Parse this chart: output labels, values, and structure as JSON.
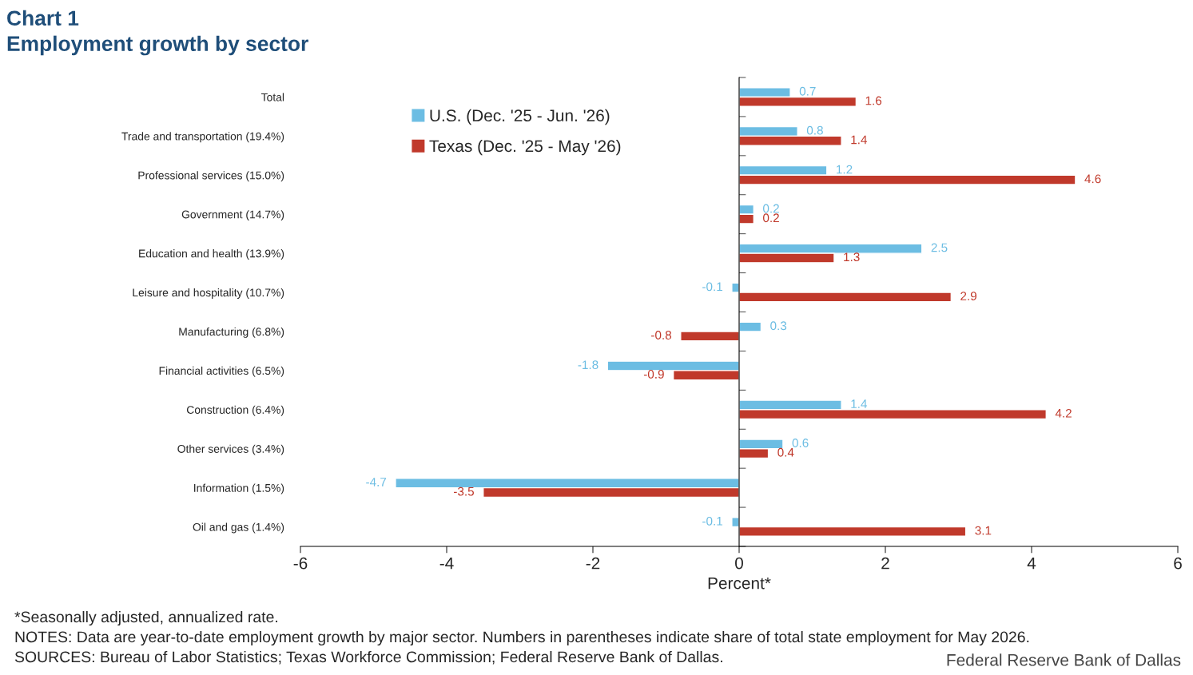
{
  "chart_data": {
    "type": "bar",
    "orientation": "horizontal",
    "title": "Chart 1",
    "subtitle": "Employment growth by sector",
    "xlabel": "Percent*",
    "categories": [
      "Total",
      "Trade and transportation (19.4%)",
      "Professional services (15.0%)",
      "Government (14.7%)",
      "Education and health (13.9%)",
      "Leisure and hospitality (10.7%)",
      "Manufacturing (6.8%)",
      "Financial activities (6.5%)",
      "Construction (6.4%)",
      "Other services (3.4%)",
      "Information (1.5%)",
      "Oil and gas (1.4%)"
    ],
    "series": [
      {
        "name": "U.S. (Dec. '25 - Jun. '26)",
        "color": "#6cbde3",
        "values": [
          0.7,
          0.8,
          1.2,
          0.2,
          2.5,
          -0.1,
          0.3,
          -1.8,
          1.4,
          0.6,
          -4.7,
          -0.1
        ]
      },
      {
        "name": "Texas (Dec. '25 - May '26)",
        "color": "#c0392b",
        "values": [
          1.6,
          1.4,
          4.6,
          0.2,
          1.3,
          2.9,
          -0.8,
          -0.9,
          4.2,
          0.4,
          -3.5,
          3.1
        ]
      }
    ],
    "data_labels": true,
    "xlim": [
      -6,
      6
    ],
    "xticks": [
      -6,
      -4,
      -2,
      0,
      2,
      4,
      6
    ],
    "legend": "top left",
    "annotations": [
      "*Seasonally adjusted, annualized rate.",
      "NOTES: Data are year-to-date employment growth by major sector. Numbers in parentheses indicate share of total state employment for May 2026.",
      "SOURCES: Bureau of Labor Statistics; Texas Workforce Commission; Federal Reserve Bank of Dallas.",
      "Federal Reserve Bank of Dallas"
    ]
  }
}
